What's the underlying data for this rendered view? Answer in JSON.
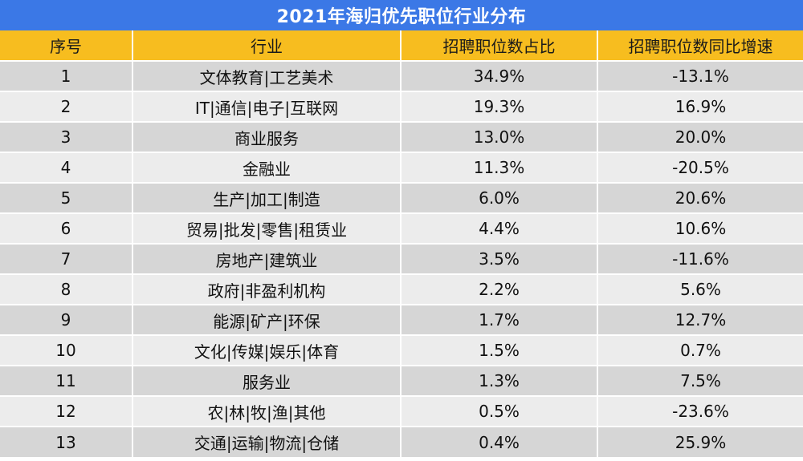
{
  "title": "2021年海归优先职位行业分布",
  "colors": {
    "title_bg": "#3b78e6",
    "header_bg": "#f7bd1f",
    "row_odd_bg": "#d6d6d6",
    "row_even_bg": "#ececec"
  },
  "chart_data": {
    "type": "table",
    "title": "2021年海归优先职位行业分布",
    "columns": [
      "序号",
      "行业",
      "招聘职位数占比",
      "招聘职位数同比增速"
    ],
    "rows": [
      [
        "1",
        "文体教育|工艺美术",
        "34.9%",
        "-13.1%"
      ],
      [
        "2",
        "IT|通信|电子|互联网",
        "19.3%",
        "16.9%"
      ],
      [
        "3",
        "商业服务",
        "13.0%",
        "20.0%"
      ],
      [
        "4",
        "金融业",
        "11.3%",
        "-20.5%"
      ],
      [
        "5",
        "生产|加工|制造",
        "6.0%",
        "20.6%"
      ],
      [
        "6",
        "贸易|批发|零售|租赁业",
        "4.4%",
        "10.6%"
      ],
      [
        "7",
        "房地产|建筑业",
        "3.5%",
        "-11.6%"
      ],
      [
        "8",
        "政府|非盈利机构",
        "2.2%",
        "5.6%"
      ],
      [
        "9",
        "能源|矿产|环保",
        "1.7%",
        "12.7%"
      ],
      [
        "10",
        "文化|传媒|娱乐|体育",
        "1.5%",
        "0.7%"
      ],
      [
        "11",
        "服务业",
        "1.3%",
        "7.5%"
      ],
      [
        "12",
        "农|林|牧|渔|其他",
        "0.5%",
        "-23.6%"
      ],
      [
        "13",
        "交通|运输|物流|仓储",
        "0.4%",
        "25.9%"
      ]
    ]
  }
}
